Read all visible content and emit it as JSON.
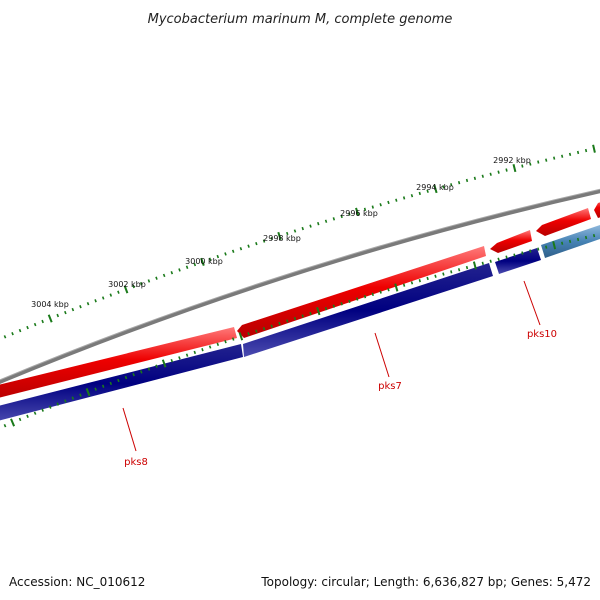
{
  "title": "Mycobacterium marinum M, complete genome",
  "footer": {
    "accession": "Accession: NC_010612",
    "summary": "Topology: circular; Length: 6,636,827 bp; Genes: 5,472"
  },
  "ruler": {
    "labels": [
      "3004 kbp",
      "3002 kbp",
      "3000 kbp",
      "2998 kbp",
      "2996 kbp",
      "2994 kbp",
      "2992 kbp"
    ]
  },
  "genes": [
    {
      "name": "pks8"
    },
    {
      "name": "pks7"
    },
    {
      "name": "pks10"
    }
  ],
  "colors": {
    "backbone": "#7a7a7a",
    "forward_feature": "#ee0000",
    "reverse_feature": "#000080",
    "reverse_feature_light": "#4682b4",
    "tick": "#1a7a1a",
    "gene_label": "#cc0000"
  }
}
